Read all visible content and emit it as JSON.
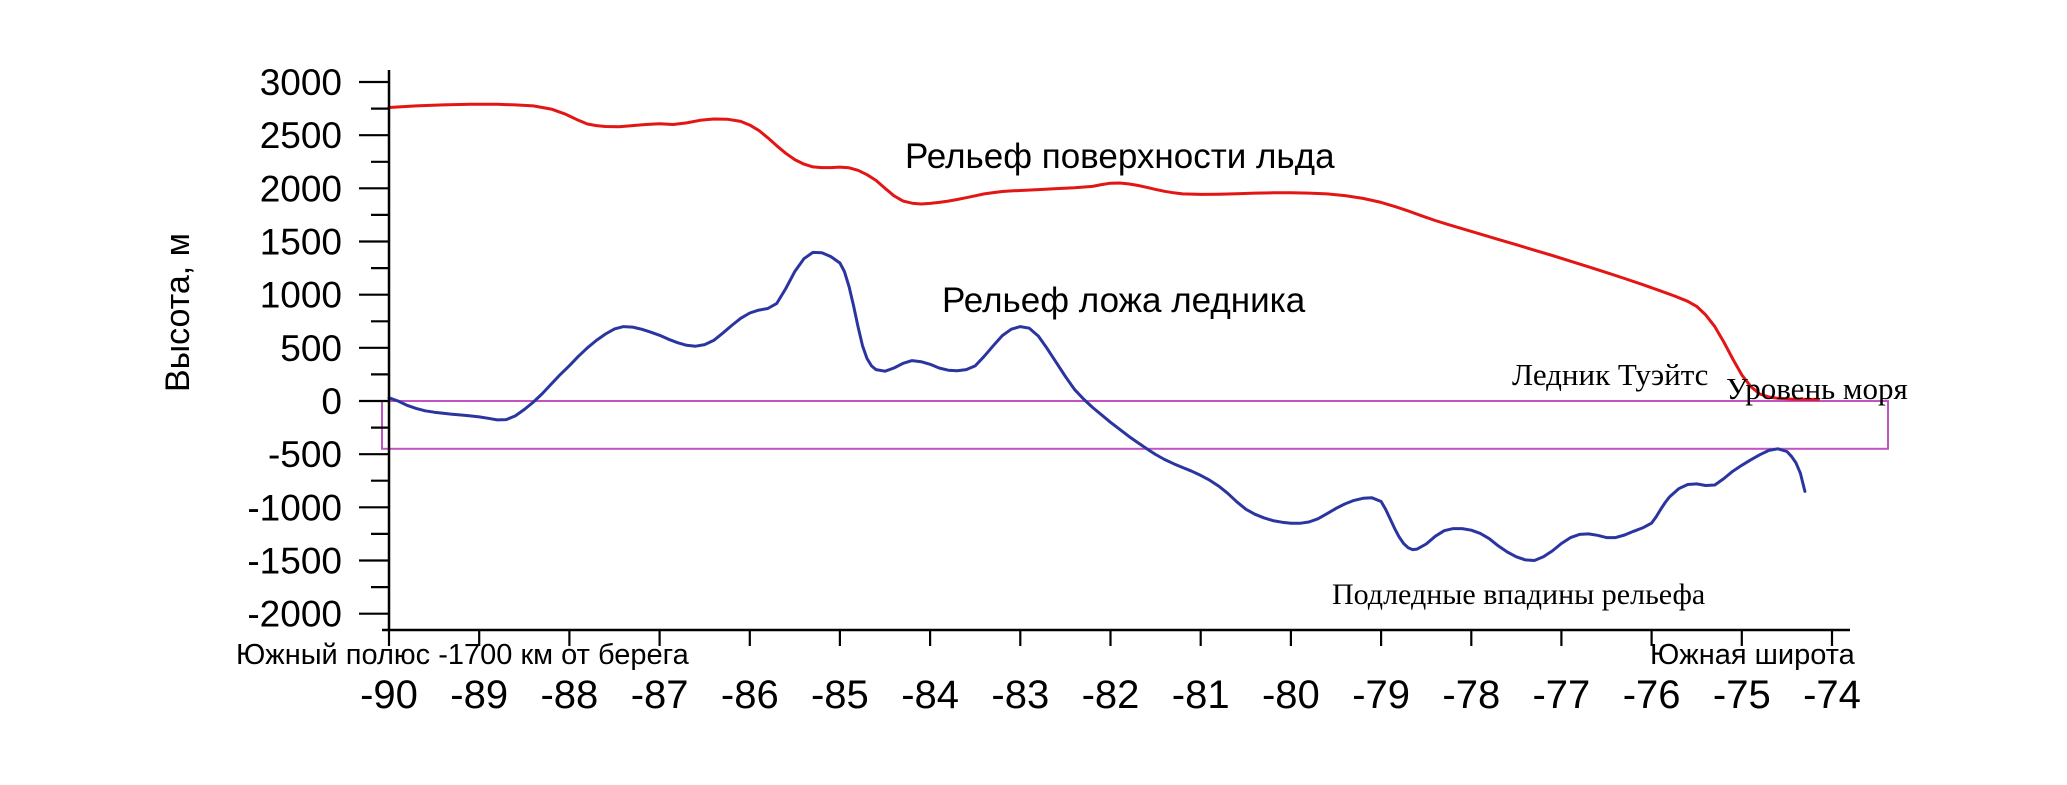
{
  "chart_data": {
    "type": "line",
    "title": "",
    "ylabel": "Высота, м",
    "xlabel": "Южная широта",
    "xlim": [
      -90,
      -74
    ],
    "ylim": [
      -2000,
      3000
    ],
    "x_ticks": [
      -90,
      -89,
      -88,
      -87,
      -86,
      -85,
      -84,
      -83,
      -82,
      -81,
      -80,
      -79,
      -78,
      -77,
      -76,
      -75,
      -74
    ],
    "y_major_ticks": [
      3000,
      2500,
      2000,
      1500,
      1000,
      500,
      0,
      -500,
      -1000,
      -1500,
      -2000
    ],
    "y_minor_step": 250,
    "grid": false,
    "legend": "none (inline text labels near curves)",
    "sea_level_band": {
      "top": 0,
      "bottom": -450,
      "color": "#c253c2"
    },
    "annotations": {
      "surface_label": "Рельеф поверхности льда",
      "bed_label": "Рельеф ложа ледника",
      "thwaites": "Ледник Туэйтс",
      "sea_level": "Уровень моря",
      "depressions": "Подледные впадины рельефа",
      "south_pole_note": "Южный полюс -1700 км от берега"
    },
    "series": [
      {
        "name": "Рельеф поверхности льда",
        "color": "#e31515",
        "points": [
          [
            -90,
            2760
          ],
          [
            -89.7,
            2775
          ],
          [
            -89.4,
            2785
          ],
          [
            -89.1,
            2790
          ],
          [
            -88.8,
            2790
          ],
          [
            -88.6,
            2785
          ],
          [
            -88.4,
            2775
          ],
          [
            -88.2,
            2745
          ],
          [
            -88.05,
            2700
          ],
          [
            -87.9,
            2640
          ],
          [
            -87.8,
            2605
          ],
          [
            -87.7,
            2590
          ],
          [
            -87.6,
            2582
          ],
          [
            -87.45,
            2580
          ],
          [
            -87.3,
            2590
          ],
          [
            -87.15,
            2600
          ],
          [
            -87,
            2608
          ],
          [
            -86.85,
            2600
          ],
          [
            -86.7,
            2615
          ],
          [
            -86.55,
            2640
          ],
          [
            -86.4,
            2652
          ],
          [
            -86.25,
            2650
          ],
          [
            -86.1,
            2630
          ],
          [
            -86,
            2595
          ],
          [
            -85.9,
            2545
          ],
          [
            -85.8,
            2475
          ],
          [
            -85.7,
            2400
          ],
          [
            -85.6,
            2330
          ],
          [
            -85.5,
            2270
          ],
          [
            -85.4,
            2228
          ],
          [
            -85.3,
            2202
          ],
          [
            -85.2,
            2195
          ],
          [
            -85.1,
            2195
          ],
          [
            -85,
            2200
          ],
          [
            -84.9,
            2193
          ],
          [
            -84.8,
            2170
          ],
          [
            -84.7,
            2128
          ],
          [
            -84.6,
            2075
          ],
          [
            -84.5,
            2000
          ],
          [
            -84.4,
            1930
          ],
          [
            -84.3,
            1880
          ],
          [
            -84.2,
            1860
          ],
          [
            -84.1,
            1853
          ],
          [
            -84,
            1858
          ],
          [
            -83.9,
            1868
          ],
          [
            -83.8,
            1880
          ],
          [
            -83.7,
            1895
          ],
          [
            -83.6,
            1912
          ],
          [
            -83.5,
            1930
          ],
          [
            -83.4,
            1948
          ],
          [
            -83.3,
            1960
          ],
          [
            -83.2,
            1970
          ],
          [
            -83.1,
            1976
          ],
          [
            -83,
            1980
          ],
          [
            -82.8,
            1988
          ],
          [
            -82.6,
            1998
          ],
          [
            -82.4,
            2005
          ],
          [
            -82.2,
            2018
          ],
          [
            -82.1,
            2035
          ],
          [
            -82,
            2048
          ],
          [
            -81.9,
            2050
          ],
          [
            -81.8,
            2042
          ],
          [
            -81.7,
            2028
          ],
          [
            -81.6,
            2010
          ],
          [
            -81.5,
            1990
          ],
          [
            -81.4,
            1972
          ],
          [
            -81.3,
            1958
          ],
          [
            -81.2,
            1948
          ],
          [
            -81,
            1943
          ],
          [
            -80.8,
            1945
          ],
          [
            -80.6,
            1950
          ],
          [
            -80.4,
            1955
          ],
          [
            -80.2,
            1958
          ],
          [
            -80,
            1958
          ],
          [
            -79.8,
            1955
          ],
          [
            -79.6,
            1948
          ],
          [
            -79.4,
            1932
          ],
          [
            -79.2,
            1905
          ],
          [
            -79,
            1868
          ],
          [
            -78.85,
            1830
          ],
          [
            -78.7,
            1788
          ],
          [
            -78.55,
            1742
          ],
          [
            -78.4,
            1698
          ],
          [
            -78.25,
            1658
          ],
          [
            -78.1,
            1620
          ],
          [
            -77.9,
            1570
          ],
          [
            -77.7,
            1520
          ],
          [
            -77.5,
            1470
          ],
          [
            -77.3,
            1418
          ],
          [
            -77.1,
            1368
          ],
          [
            -76.9,
            1315
          ],
          [
            -76.7,
            1262
          ],
          [
            -76.5,
            1208
          ],
          [
            -76.3,
            1152
          ],
          [
            -76.1,
            1095
          ],
          [
            -75.9,
            1035
          ],
          [
            -75.75,
            988
          ],
          [
            -75.6,
            938
          ],
          [
            -75.5,
            890
          ],
          [
            -75.4,
            810
          ],
          [
            -75.3,
            700
          ],
          [
            -75.2,
            555
          ],
          [
            -75.1,
            395
          ],
          [
            -75,
            245
          ],
          [
            -74.9,
            135
          ],
          [
            -74.8,
            65
          ],
          [
            -74.7,
            38
          ],
          [
            -74.6,
            25
          ],
          [
            -74.45,
            18
          ],
          [
            -74.3,
            15
          ],
          [
            -74.15,
            15
          ]
        ]
      },
      {
        "name": "Рельеф ложа ледника",
        "color": "#2b35a0",
        "points": [
          [
            -90,
            30
          ],
          [
            -89.9,
            0
          ],
          [
            -89.8,
            -40
          ],
          [
            -89.7,
            -70
          ],
          [
            -89.6,
            -92
          ],
          [
            -89.5,
            -105
          ],
          [
            -89.4,
            -115
          ],
          [
            -89.3,
            -124
          ],
          [
            -89.2,
            -132
          ],
          [
            -89.1,
            -140
          ],
          [
            -89,
            -150
          ],
          [
            -88.9,
            -163
          ],
          [
            -88.8,
            -178
          ],
          [
            -88.7,
            -175
          ],
          [
            -88.6,
            -140
          ],
          [
            -88.5,
            -80
          ],
          [
            -88.4,
            -10
          ],
          [
            -88.3,
            70
          ],
          [
            -88.2,
            160
          ],
          [
            -88.1,
            250
          ],
          [
            -88,
            332
          ],
          [
            -87.9,
            420
          ],
          [
            -87.8,
            500
          ],
          [
            -87.7,
            570
          ],
          [
            -87.6,
            630
          ],
          [
            -87.5,
            678
          ],
          [
            -87.4,
            700
          ],
          [
            -87.3,
            695
          ],
          [
            -87.2,
            675
          ],
          [
            -87.1,
            648
          ],
          [
            -87,
            618
          ],
          [
            -86.9,
            580
          ],
          [
            -86.8,
            548
          ],
          [
            -86.7,
            524
          ],
          [
            -86.6,
            515
          ],
          [
            -86.5,
            530
          ],
          [
            -86.4,
            570
          ],
          [
            -86.3,
            638
          ],
          [
            -86.2,
            710
          ],
          [
            -86.1,
            778
          ],
          [
            -86,
            828
          ],
          [
            -85.9,
            855
          ],
          [
            -85.8,
            870
          ],
          [
            -85.7,
            918
          ],
          [
            -85.6,
            1058
          ],
          [
            -85.5,
            1218
          ],
          [
            -85.4,
            1338
          ],
          [
            -85.3,
            1398
          ],
          [
            -85.2,
            1395
          ],
          [
            -85.1,
            1358
          ],
          [
            -85,
            1298
          ],
          [
            -84.95,
            1218
          ],
          [
            -84.9,
            1078
          ],
          [
            -84.85,
            898
          ],
          [
            -84.8,
            700
          ],
          [
            -84.75,
            520
          ],
          [
            -84.7,
            400
          ],
          [
            -84.65,
            330
          ],
          [
            -84.6,
            295
          ],
          [
            -84.5,
            280
          ],
          [
            -84.4,
            310
          ],
          [
            -84.3,
            355
          ],
          [
            -84.2,
            380
          ],
          [
            -84.1,
            370
          ],
          [
            -84,
            345
          ],
          [
            -83.9,
            310
          ],
          [
            -83.8,
            290
          ],
          [
            -83.7,
            285
          ],
          [
            -83.6,
            295
          ],
          [
            -83.5,
            330
          ],
          [
            -83.4,
            420
          ],
          [
            -83.3,
            520
          ],
          [
            -83.2,
            615
          ],
          [
            -83.1,
            675
          ],
          [
            -83,
            700
          ],
          [
            -82.9,
            685
          ],
          [
            -82.8,
            610
          ],
          [
            -82.7,
            490
          ],
          [
            -82.6,
            360
          ],
          [
            -82.5,
            230
          ],
          [
            -82.4,
            110
          ],
          [
            -82.3,
            20
          ],
          [
            -82.2,
            -60
          ],
          [
            -82.1,
            -130
          ],
          [
            -82,
            -200
          ],
          [
            -81.9,
            -265
          ],
          [
            -81.8,
            -330
          ],
          [
            -81.7,
            -390
          ],
          [
            -81.6,
            -448
          ],
          [
            -81.5,
            -503
          ],
          [
            -81.4,
            -550
          ],
          [
            -81.3,
            -590
          ],
          [
            -81.2,
            -625
          ],
          [
            -81.1,
            -660
          ],
          [
            -81,
            -700
          ],
          [
            -80.9,
            -745
          ],
          [
            -80.8,
            -800
          ],
          [
            -80.7,
            -868
          ],
          [
            -80.6,
            -948
          ],
          [
            -80.5,
            -1018
          ],
          [
            -80.4,
            -1065
          ],
          [
            -80.3,
            -1098
          ],
          [
            -80.2,
            -1125
          ],
          [
            -80.1,
            -1140
          ],
          [
            -80,
            -1150
          ],
          [
            -79.9,
            -1150
          ],
          [
            -79.8,
            -1138
          ],
          [
            -79.7,
            -1108
          ],
          [
            -79.6,
            -1060
          ],
          [
            -79.5,
            -1010
          ],
          [
            -79.4,
            -968
          ],
          [
            -79.3,
            -935
          ],
          [
            -79.2,
            -915
          ],
          [
            -79.1,
            -910
          ],
          [
            -79,
            -945
          ],
          [
            -78.95,
            -1018
          ],
          [
            -78.9,
            -1108
          ],
          [
            -78.85,
            -1198
          ],
          [
            -78.8,
            -1278
          ],
          [
            -78.75,
            -1340
          ],
          [
            -78.7,
            -1380
          ],
          [
            -78.65,
            -1398
          ],
          [
            -78.6,
            -1393
          ],
          [
            -78.5,
            -1345
          ],
          [
            -78.4,
            -1272
          ],
          [
            -78.3,
            -1220
          ],
          [
            -78.2,
            -1200
          ],
          [
            -78.1,
            -1200
          ],
          [
            -78,
            -1215
          ],
          [
            -77.9,
            -1245
          ],
          [
            -77.8,
            -1295
          ],
          [
            -77.7,
            -1363
          ],
          [
            -77.6,
            -1420
          ],
          [
            -77.5,
            -1465
          ],
          [
            -77.4,
            -1494
          ],
          [
            -77.3,
            -1500
          ],
          [
            -77.2,
            -1465
          ],
          [
            -77.1,
            -1410
          ],
          [
            -77,
            -1340
          ],
          [
            -76.9,
            -1285
          ],
          [
            -76.8,
            -1255
          ],
          [
            -76.7,
            -1250
          ],
          [
            -76.6,
            -1263
          ],
          [
            -76.5,
            -1285
          ],
          [
            -76.4,
            -1285
          ],
          [
            -76.3,
            -1260
          ],
          [
            -76.2,
            -1225
          ],
          [
            -76.1,
            -1193
          ],
          [
            -76,
            -1148
          ],
          [
            -75.95,
            -1090
          ],
          [
            -75.9,
            -1020
          ],
          [
            -75.85,
            -955
          ],
          [
            -75.8,
            -900
          ],
          [
            -75.7,
            -825
          ],
          [
            -75.6,
            -785
          ],
          [
            -75.5,
            -780
          ],
          [
            -75.4,
            -795
          ],
          [
            -75.3,
            -790
          ],
          [
            -75.2,
            -730
          ],
          [
            -75.1,
            -660
          ],
          [
            -75,
            -605
          ],
          [
            -74.9,
            -553
          ],
          [
            -74.8,
            -505
          ],
          [
            -74.7,
            -465
          ],
          [
            -74.6,
            -450
          ],
          [
            -74.5,
            -475
          ],
          [
            -74.45,
            -520
          ],
          [
            -74.4,
            -580
          ],
          [
            -74.35,
            -680
          ],
          [
            -74.3,
            -850
          ]
        ]
      }
    ]
  }
}
